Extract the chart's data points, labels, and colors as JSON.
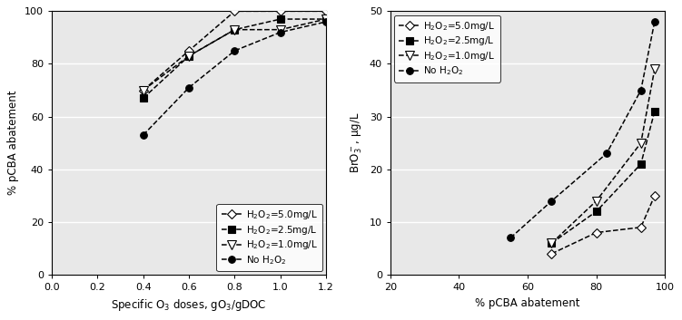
{
  "left": {
    "xlabel": "Specific O$_3$ doses, gO$_3$/gDOC",
    "ylabel": "% pCBA abatement",
    "xlim": [
      0.0,
      1.2
    ],
    "ylim": [
      0,
      100
    ],
    "xticks": [
      0.0,
      0.2,
      0.4,
      0.6,
      0.8,
      1.0,
      1.2
    ],
    "yticks": [
      0,
      20,
      40,
      60,
      80,
      100
    ],
    "series": [
      {
        "label": "H$_2$O$_2$=5.0mg/L",
        "x": [
          0.4,
          0.6,
          0.8,
          1.0,
          1.2
        ],
        "y": [
          70,
          85,
          100,
          100,
          100
        ],
        "marker": "D",
        "fillstyle": "none",
        "markersize": 5.5,
        "color": "black"
      },
      {
        "label": "H$_2$O$_2$=2.5mg/L",
        "x": [
          0.4,
          0.6,
          0.8,
          1.0,
          1.2
        ],
        "y": [
          67,
          83,
          93,
          97,
          97
        ],
        "marker": "s",
        "fillstyle": "full",
        "markersize": 5.5,
        "color": "black"
      },
      {
        "label": "H$_2$O$_2$=1.0mg/L",
        "x": [
          0.4,
          0.6,
          0.8,
          1.0,
          1.2
        ],
        "y": [
          70,
          83,
          93,
          93,
          97
        ],
        "marker": "v",
        "fillstyle": "none",
        "markersize": 7,
        "color": "black"
      },
      {
        "label": "No H$_2$O$_2$",
        "x": [
          0.4,
          0.6,
          0.8,
          1.0,
          1.2
        ],
        "y": [
          53,
          71,
          85,
          92,
          96
        ],
        "marker": "o",
        "fillstyle": "full",
        "markersize": 5.5,
        "color": "black"
      }
    ],
    "legend_loc": "lower right"
  },
  "right": {
    "xlabel": "% pCBA abatement",
    "ylabel": "BrO$_3^-$, μg/L",
    "xlim": [
      20,
      100
    ],
    "ylim": [
      0,
      50
    ],
    "xticks": [
      20,
      40,
      60,
      80,
      100
    ],
    "yticks": [
      0,
      10,
      20,
      30,
      40,
      50
    ],
    "series": [
      {
        "label": "H$_2$O$_2$=5.0mg/L",
        "x": [
          67,
          80,
          93,
          97
        ],
        "y": [
          4,
          8,
          9,
          15
        ],
        "marker": "D",
        "fillstyle": "none",
        "markersize": 5.5,
        "color": "black"
      },
      {
        "label": "H$_2$O$_2$=2.5mg/L",
        "x": [
          67,
          80,
          93,
          97
        ],
        "y": [
          6,
          12,
          21,
          31
        ],
        "marker": "s",
        "fillstyle": "full",
        "markersize": 5.5,
        "color": "black"
      },
      {
        "label": "H$_2$O$_2$=1.0mg/L",
        "x": [
          67,
          80,
          93,
          97
        ],
        "y": [
          6,
          14,
          25,
          39
        ],
        "marker": "v",
        "fillstyle": "none",
        "markersize": 7,
        "color": "black"
      },
      {
        "label": "No H$_2$O$_2$",
        "x": [
          55,
          67,
          83,
          93,
          97
        ],
        "y": [
          7,
          14,
          23,
          35,
          48
        ],
        "marker": "o",
        "fillstyle": "full",
        "markersize": 5.5,
        "color": "black"
      }
    ],
    "legend_loc": "upper left"
  },
  "linestyle": "--",
  "linewidth": 1.1,
  "bg_color": "#e8e8e8",
  "grid_color": "#ffffff",
  "font_size": 8.5
}
